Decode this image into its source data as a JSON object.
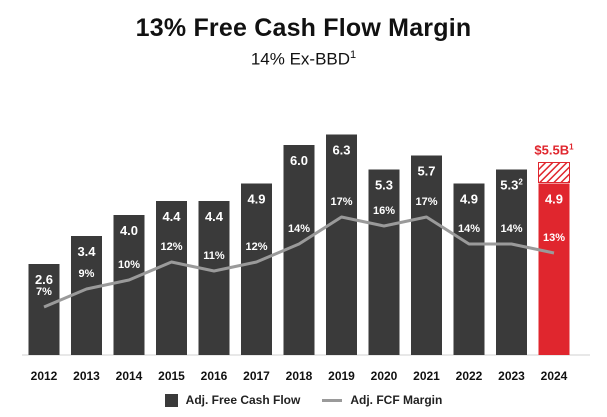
{
  "header": {
    "title": "13% Free Cash Flow Margin",
    "subtitle_main": "14% Ex-BBD",
    "subtitle_sup": "1"
  },
  "legend": {
    "bar_label": "Adj. Free Cash Flow",
    "line_label": "Adj. FCF Margin"
  },
  "colors": {
    "bar": "#3a3a3a",
    "highlight_bar": "#e0262e",
    "line": "#9a9a9a",
    "text_dark": "#111111",
    "bar_label": "#ffffff"
  },
  "chart_data": {
    "type": "bar",
    "title": "13% Free Cash Flow Margin",
    "subtitle": "14% Ex-BBD1",
    "categories": [
      "2012",
      "2013",
      "2014",
      "2015",
      "2016",
      "2017",
      "2018",
      "2019",
      "2020",
      "2021",
      "2022",
      "2023",
      "2024"
    ],
    "series": [
      {
        "name": "Adj. Free Cash Flow",
        "type": "bar",
        "values": [
          2.6,
          3.4,
          4.0,
          4.4,
          4.4,
          4.9,
          6.0,
          6.3,
          5.3,
          5.7,
          4.9,
          5.3,
          4.9
        ],
        "labels": [
          "2.6",
          "3.4",
          "4.0",
          "4.4",
          "4.4",
          "4.9",
          "6.0",
          "6.3",
          "5.3",
          "5.7",
          "4.9",
          "5.3",
          "4.9"
        ],
        "label_superscripts": [
          "",
          "",
          "",
          "",
          "",
          "",
          "",
          "",
          "",
          "",
          "",
          "2",
          ""
        ],
        "highlight_index": 12
      },
      {
        "name": "Adj. FCF Margin",
        "type": "line",
        "values": [
          7,
          9,
          10,
          12,
          11,
          12,
          14,
          17,
          16,
          17,
          14,
          14,
          13
        ],
        "labels": [
          "7%",
          "9%",
          "10%",
          "12%",
          "11%",
          "12%",
          "14%",
          "17%",
          "16%",
          "17%",
          "14%",
          "14%",
          "13%"
        ]
      }
    ],
    "extension": {
      "category": "2024",
      "total": 5.5,
      "label": "$5.5B",
      "label_sup": "1",
      "pattern": "hatched"
    },
    "ylim_bars": [
      0,
      6.5
    ],
    "ylim_line": [
      0,
      20
    ],
    "grid": false,
    "legend_position": "bottom"
  }
}
